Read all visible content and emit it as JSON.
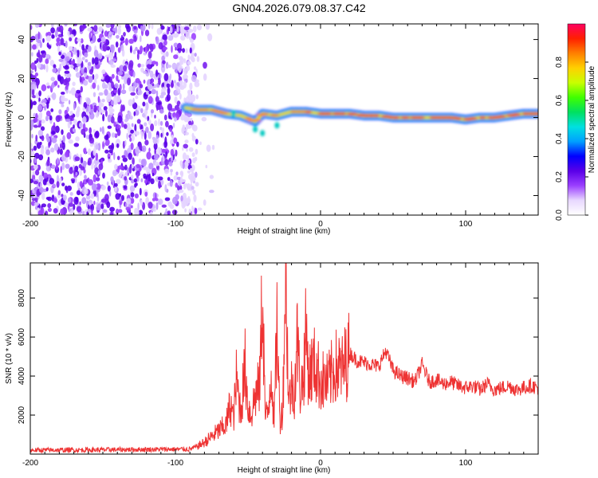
{
  "title": "GN04.2026.079.08.37.C42",
  "colors": {
    "trace": "#ee3333",
    "cmap": [
      "#ffffff",
      "#e8d8ff",
      "#9b40ff",
      "#5a00e8",
      "#0000ff",
      "#00a0ff",
      "#00e0e0",
      "#00e060",
      "#40ff00",
      "#c8ff00",
      "#ffd000",
      "#ff8000",
      "#ff2000",
      "#ff0060"
    ]
  },
  "chart_data": [
    {
      "type": "heatmap",
      "title": "",
      "xlabel": "Height of straight line (km)",
      "ylabel": "Frequency (Hz)",
      "xlim": [
        -200,
        150
      ],
      "ylim": [
        -50,
        48
      ],
      "xticks": [
        -200,
        -100,
        0,
        100
      ],
      "yticks": [
        -40,
        -20,
        0,
        20,
        40
      ],
      "noise_region_x": [
        -200,
        -85
      ],
      "signal_ridge": {
        "x": [
          -93,
          -85,
          -75,
          -65,
          -55,
          -45,
          -40,
          -30,
          -20,
          -10,
          0,
          10,
          20,
          30,
          40,
          50,
          60,
          70,
          80,
          90,
          100,
          110,
          120,
          130,
          140,
          150
        ],
        "freq": [
          5,
          4,
          4,
          2,
          1,
          -2,
          2,
          1,
          3,
          3,
          2,
          2,
          2,
          1,
          1,
          0,
          0,
          0,
          0,
          0,
          -1,
          0,
          0,
          1,
          2,
          2
        ]
      },
      "colorbar": {
        "label": "Normalized spectral amplitude",
        "range": [
          0.0,
          1.0
        ],
        "ticks": [
          "0.0",
          "0.2",
          "0.4",
          "0.6",
          "0.8"
        ]
      }
    },
    {
      "type": "line",
      "title": "",
      "xlabel": "Height of straight line (km)",
      "ylabel": "SNR (10 * v/v)",
      "xlim": [
        -200,
        150
      ],
      "ylim": [
        0,
        9800
      ],
      "xticks": [
        -200,
        -100,
        0,
        100
      ],
      "yticks": [
        2000,
        4000,
        6000,
        8000
      ],
      "series": [
        {
          "name": "SNR",
          "x": [
            -200,
            -150,
            -100,
            -90,
            -85,
            -80,
            -75,
            -70,
            -65,
            -62,
            -60,
            -58,
            -55,
            -52,
            -50,
            -48,
            -45,
            -42,
            -40,
            -38,
            -36,
            -34,
            -32,
            -30,
            -28,
            -26,
            -24,
            -22,
            -20,
            -18,
            -16,
            -14,
            -12,
            -10,
            -8,
            -6,
            -4,
            -2,
            0,
            5,
            10,
            15,
            20,
            25,
            30,
            35,
            40,
            45,
            50,
            55,
            60,
            65,
            70,
            75,
            80,
            85,
            90,
            95,
            100,
            105,
            110,
            115,
            120,
            125,
            130,
            135,
            140,
            145,
            150
          ],
          "y": [
            200,
            220,
            250,
            250,
            400,
            600,
            900,
            1200,
            1500,
            2600,
            1800,
            3800,
            2200,
            4500,
            2500,
            2000,
            3000,
            3500,
            8500,
            1800,
            2200,
            4500,
            1500,
            6800,
            1700,
            2400,
            9800,
            2600,
            3500,
            3200,
            6000,
            3300,
            3800,
            6200,
            4000,
            4400,
            4600,
            4200,
            3800,
            3600,
            4500,
            4300,
            5200,
            4800,
            4700,
            4600,
            4500,
            5300,
            4300,
            4000,
            3900,
            3700,
            4600,
            3700,
            3800,
            3600,
            3700,
            3500,
            3400,
            3500,
            3300,
            3600,
            3300,
            3400,
            3500,
            3300,
            3400,
            3500,
            3400
          ]
        }
      ]
    }
  ]
}
